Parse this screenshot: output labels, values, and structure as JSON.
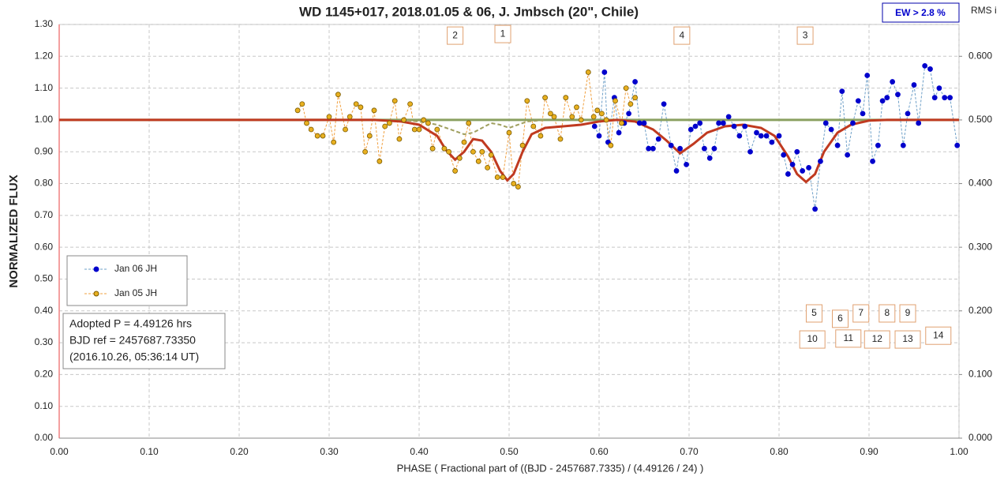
{
  "chart_data": {
    "type": "scatter",
    "title": "WD 1145+017, 2018.01.05 & 06, J. Jmbsch (20\", Chile)",
    "x_label": "PHASE  ( Fractional part of ((BJD - 2457687.7335)  / (4.49126  / 24) )",
    "y_label": "NORMALIZED  FLUX",
    "y2_label": "RMS i",
    "ew_label": "EW >  2.8 %",
    "info_lines": [
      "Adopted P = 4.49126 hrs",
      "BJD ref = 2457687.73350",
      "(2016.10.26, 05:36:14 UT)"
    ],
    "xlim": [
      0,
      1
    ],
    "ylim": [
      0,
      1.3
    ],
    "y2lim": [
      0,
      0.65
    ],
    "grid": true,
    "xticks": [
      {
        "value": 0,
        "label": "0.00"
      },
      {
        "value": 0.1,
        "label": "0.10"
      },
      {
        "value": 0.2,
        "label": "0.20"
      },
      {
        "value": 0.3,
        "label": "0.30"
      },
      {
        "value": 0.4,
        "label": "0.40"
      },
      {
        "value": 0.5,
        "label": "0.50"
      },
      {
        "value": 0.6,
        "label": "0.60"
      },
      {
        "value": 0.7,
        "label": "0.70"
      },
      {
        "value": 0.8,
        "label": "0.80"
      },
      {
        "value": 0.9,
        "label": "0.90"
      },
      {
        "value": 1,
        "label": "1.00"
      }
    ],
    "yticks": [
      {
        "value": 0,
        "label": "0.00"
      },
      {
        "value": 0.1,
        "label": "0.10"
      },
      {
        "value": 0.2,
        "label": "0.20"
      },
      {
        "value": 0.3,
        "label": "0.30"
      },
      {
        "value": 0.4,
        "label": "0.40"
      },
      {
        "value": 0.5,
        "label": "0.50"
      },
      {
        "value": 0.6,
        "label": "0.60"
      },
      {
        "value": 0.7,
        "label": "0.70"
      },
      {
        "value": 0.8,
        "label": "0.80"
      },
      {
        "value": 0.9,
        "label": "0.90"
      },
      {
        "value": 1,
        "label": "1.00"
      },
      {
        "value": 1.1,
        "label": "1.10"
      },
      {
        "value": 1.2,
        "label": "1.20"
      },
      {
        "value": 1.3,
        "label": "1.30"
      }
    ],
    "y2ticks": [
      {
        "value": 0,
        "label": "0.000"
      },
      {
        "value": 0.1,
        "label": "0.100"
      },
      {
        "value": 0.2,
        "label": "0.200"
      },
      {
        "value": 0.3,
        "label": "0.300"
      },
      {
        "value": 0.4,
        "label": "0.400"
      },
      {
        "value": 0.5,
        "label": "0.500"
      },
      {
        "value": 0.6,
        "label": "0.600"
      }
    ],
    "series": [
      {
        "name": "Jan 06 JH",
        "color": "#0000cc",
        "line_color": "#6fa0c8",
        "x": [
          0.595,
          0.6,
          0.606,
          0.61,
          0.617,
          0.622,
          0.628,
          0.633,
          0.64,
          0.645,
          0.65,
          0.655,
          0.66,
          0.666,
          0.672,
          0.68,
          0.686,
          0.69,
          0.697,
          0.702,
          0.707,
          0.712,
          0.717,
          0.723,
          0.728,
          0.733,
          0.738,
          0.744,
          0.75,
          0.756,
          0.762,
          0.768,
          0.775,
          0.78,
          0.786,
          0.792,
          0.8,
          0.805,
          0.81,
          0.815,
          0.82,
          0.826,
          0.833,
          0.84,
          0.846,
          0.852,
          0.858,
          0.865,
          0.87,
          0.876,
          0.882,
          0.888,
          0.893,
          0.898,
          0.904,
          0.91,
          0.915,
          0.92,
          0.926,
          0.932,
          0.938,
          0.943,
          0.95,
          0.955,
          0.962,
          0.968,
          0.973,
          0.978,
          0.984,
          0.99,
          0.998
        ],
        "values": [
          0.98,
          0.95,
          1.15,
          0.93,
          1.07,
          0.96,
          0.99,
          1.02,
          1.12,
          0.99,
          0.99,
          0.91,
          0.91,
          0.94,
          1.05,
          0.92,
          0.84,
          0.91,
          0.86,
          0.97,
          0.98,
          0.99,
          0.91,
          0.88,
          0.91,
          0.99,
          0.99,
          1.01,
          0.98,
          0.95,
          0.98,
          0.9,
          0.96,
          0.95,
          0.95,
          0.93,
          0.95,
          0.89,
          0.83,
          0.86,
          0.9,
          0.84,
          0.85,
          0.72,
          0.87,
          0.99,
          0.97,
          0.92,
          1.09,
          0.89,
          0.99,
          1.06,
          1.02,
          1.14,
          0.87,
          0.92,
          1.06,
          1.07,
          1.12,
          1.08,
          0.92,
          1.02,
          1.11,
          0.99,
          1.17,
          1.16,
          1.07,
          1.1,
          1.07,
          1.07,
          0.92
        ]
      },
      {
        "name": "Jan 05 JH",
        "color": "#e8b020",
        "line_color": "#f0a040",
        "x": [
          0.265,
          0.27,
          0.275,
          0.28,
          0.287,
          0.293,
          0.3,
          0.305,
          0.31,
          0.318,
          0.323,
          0.33,
          0.335,
          0.34,
          0.345,
          0.35,
          0.356,
          0.362,
          0.367,
          0.373,
          0.378,
          0.383,
          0.39,
          0.395,
          0.4,
          0.405,
          0.41,
          0.415,
          0.42,
          0.428,
          0.433,
          0.44,
          0.445,
          0.45,
          0.455,
          0.46,
          0.466,
          0.47,
          0.476,
          0.48,
          0.487,
          0.493,
          0.5,
          0.505,
          0.51,
          0.515,
          0.52,
          0.527,
          0.535,
          0.54,
          0.546,
          0.55,
          0.557,
          0.563,
          0.57,
          0.575,
          0.58,
          0.588,
          0.594,
          0.598,
          0.603,
          0.608,
          0.613,
          0.618,
          0.625,
          0.63,
          0.635,
          0.64
        ],
        "values": [
          1.03,
          1.05,
          0.99,
          0.97,
          0.95,
          0.95,
          1.01,
          0.93,
          1.08,
          0.97,
          1.01,
          1.05,
          1.04,
          0.9,
          0.95,
          1.03,
          0.87,
          0.98,
          0.99,
          1.06,
          0.94,
          1.0,
          1.05,
          0.97,
          0.97,
          1.0,
          0.99,
          0.91,
          0.97,
          0.91,
          0.9,
          0.84,
          0.88,
          0.93,
          0.99,
          0.9,
          0.87,
          0.9,
          0.85,
          0.89,
          0.82,
          0.82,
          0.96,
          0.8,
          0.79,
          0.92,
          1.06,
          0.98,
          0.95,
          1.07,
          1.02,
          1.01,
          0.94,
          1.07,
          1.01,
          1.04,
          1.0,
          1.15,
          1.01,
          1.03,
          1.02,
          1.0,
          0.92,
          1.06,
          0.99,
          1.1,
          1.05,
          1.07
        ]
      }
    ],
    "model_lines": [
      {
        "color": "#8aa060",
        "dashed": false,
        "x": [
          0,
          1
        ],
        "values": [
          1,
          1
        ]
      },
      {
        "color": "#a0a060",
        "dashed": true,
        "x": [
          0.38,
          0.4,
          0.42,
          0.43,
          0.44,
          0.45,
          0.46,
          0.47,
          0.48,
          0.49,
          0.5,
          0.51,
          0.52,
          0.54
        ],
        "values": [
          1,
          0.995,
          0.985,
          0.975,
          0.965,
          0.955,
          0.96,
          0.975,
          0.99,
          0.985,
          0.975,
          0.985,
          0.995,
          1
        ]
      },
      {
        "color": "#c03a20",
        "dashed": false,
        "x": [
          0,
          0.35,
          0.38,
          0.4,
          0.42,
          0.43,
          0.44,
          0.45,
          0.46,
          0.47,
          0.48,
          0.49,
          0.498,
          0.505,
          0.515,
          0.525,
          0.54,
          0.56,
          0.58,
          0.6,
          0.62,
          0.64,
          0.66,
          0.675,
          0.69,
          0.705,
          0.72,
          0.74,
          0.76,
          0.78,
          0.795,
          0.81,
          0.82,
          0.83,
          0.84,
          0.85,
          0.865,
          0.88,
          0.9,
          0.92,
          1
        ],
        "values": [
          1,
          1,
          0.995,
          0.985,
          0.95,
          0.905,
          0.875,
          0.9,
          0.94,
          0.935,
          0.9,
          0.84,
          0.81,
          0.83,
          0.9,
          0.955,
          0.975,
          0.98,
          0.985,
          0.995,
          1,
          0.995,
          0.97,
          0.935,
          0.895,
          0.925,
          0.96,
          0.98,
          0.985,
          0.975,
          0.95,
          0.885,
          0.83,
          0.805,
          0.83,
          0.9,
          0.96,
          0.985,
          0.998,
          1,
          1
        ]
      }
    ],
    "annotations": [
      {
        "text": "2",
        "x": 0.44,
        "y": 1.265
      },
      {
        "text": "1",
        "x": 0.493,
        "y": 1.27
      },
      {
        "text": "4",
        "x": 0.692,
        "y": 1.265
      },
      {
        "text": "3",
        "x": 0.829,
        "y": 1.265
      },
      {
        "text": "5",
        "x": 0.839,
        "y": 0.392
      },
      {
        "text": "6",
        "x": 0.868,
        "y": 0.375
      },
      {
        "text": "7",
        "x": 0.891,
        "y": 0.392
      },
      {
        "text": "8",
        "x": 0.92,
        "y": 0.392
      },
      {
        "text": "9",
        "x": 0.943,
        "y": 0.392
      },
      {
        "text": "10",
        "x": 0.837,
        "y": 0.31
      },
      {
        "text": "11",
        "x": 0.877,
        "y": 0.313
      },
      {
        "text": "12",
        "x": 0.909,
        "y": 0.31
      },
      {
        "text": "13",
        "x": 0.943,
        "y": 0.31
      },
      {
        "text": "14",
        "x": 0.977,
        "y": 0.322
      }
    ]
  }
}
